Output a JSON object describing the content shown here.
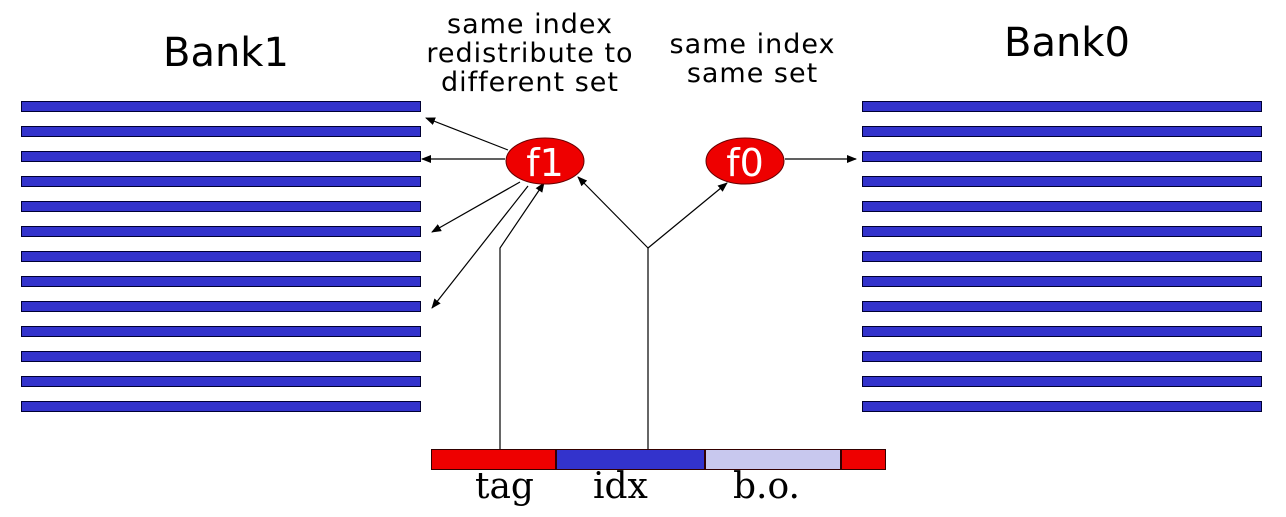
{
  "bank1": {
    "title": "Bank1",
    "rows": 13
  },
  "bank0": {
    "title": "Bank0",
    "rows": 13
  },
  "notes": {
    "left": "same index\nredistribute to\ndifferent set",
    "right": "same index\nsame set"
  },
  "functions": {
    "f1": "f1",
    "f0": "f0"
  },
  "address": {
    "fields": [
      {
        "label": "tag",
        "color": "#ee0000"
      },
      {
        "label": "idx",
        "color": "#3333cc"
      },
      {
        "label": "b.o.",
        "color": "#c8c8ee"
      }
    ],
    "tail_color": "#ee0000"
  },
  "colors": {
    "row": "#3333cc",
    "function": "#ee0000"
  }
}
